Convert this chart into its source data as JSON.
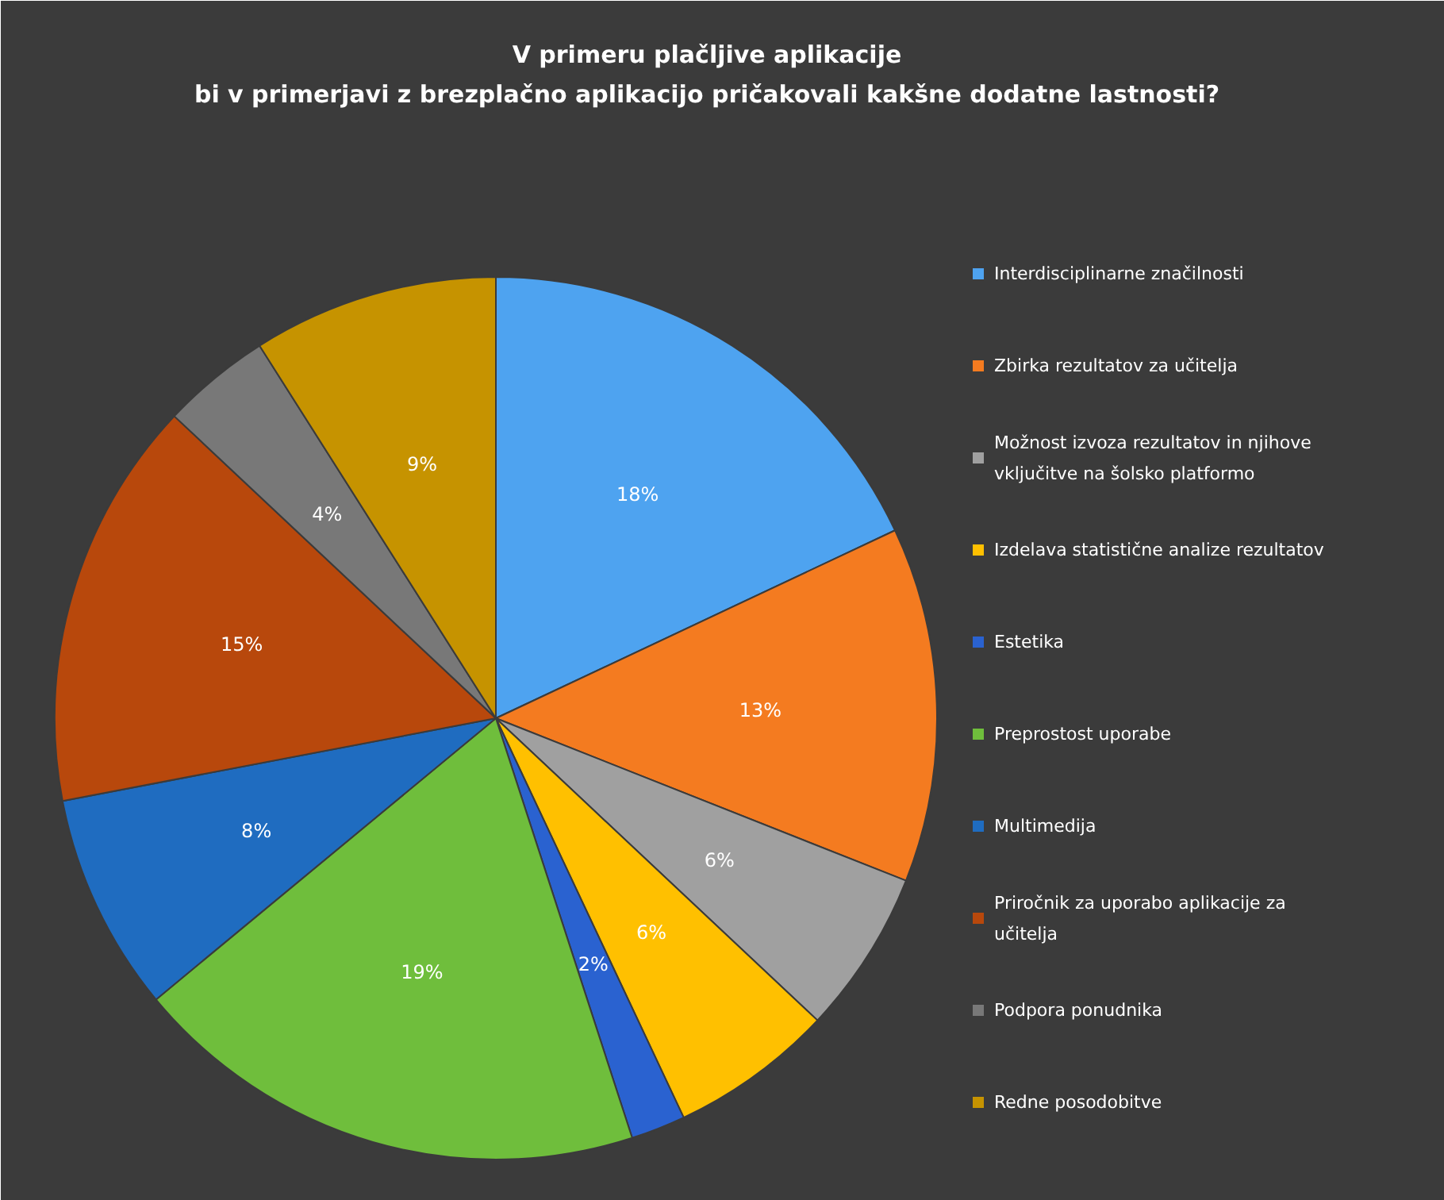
{
  "chart_data": {
    "type": "pie",
    "title": "V primeru plačljive aplikacije\nbi v primerjavi z brezplačno aplikacijo pričakovali kakšne dodatne lastnosti?",
    "categories": [
      "Interdisciplinarne značilnosti",
      "Zbirka rezultatov za učitelja",
      "Možnost izvoza rezultatov in njihove vključitve na šolsko platformo",
      "Izdelava statistične analize rezultatov",
      "Estetika",
      "Preprostost uporabe",
      "Multimedija",
      "Priročnik za uporabo aplikacije za učitelja",
      "Podpora ponudnika",
      "Redne posodobitve"
    ],
    "values": [
      18,
      13,
      6,
      6,
      2,
      19,
      8,
      15,
      4,
      9
    ],
    "value_labels": [
      "18%",
      "13%",
      "6%",
      "6%",
      "2%",
      "19%",
      "8%",
      "15%",
      "4%",
      "9%"
    ],
    "colors": [
      "#4ea3f0",
      "#f47b20",
      "#a0a0a0",
      "#ffc000",
      "#2a62d0",
      "#6fbe3c",
      "#1f6cc0",
      "#b8480c",
      "#787878",
      "#c69300"
    ],
    "legend": "right"
  }
}
